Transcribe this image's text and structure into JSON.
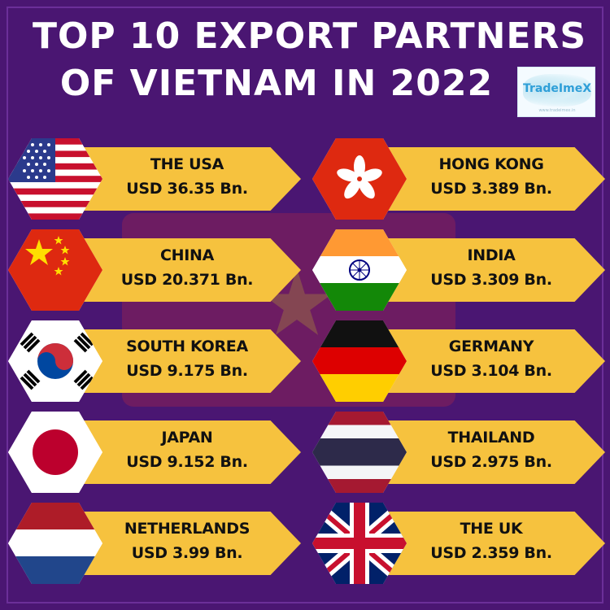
{
  "header": {
    "title_line1": "TOP 10 EXPORT PARTNERS",
    "title_line2": "OF VIETNAM IN 2022"
  },
  "logo": {
    "brand": "TradeImeX",
    "tagline": "www.tradeimex.in"
  },
  "partners": [
    {
      "country": "THE USA",
      "value": "USD 36.35 Bn.",
      "flag": "usa-flag-icon"
    },
    {
      "country": "CHINA",
      "value": "USD 20.371 Bn.",
      "flag": "china-flag-icon"
    },
    {
      "country": "SOUTH KOREA",
      "value": "USD 9.175 Bn.",
      "flag": "south-korea-flag-icon"
    },
    {
      "country": "JAPAN",
      "value": "USD 9.152 Bn.",
      "flag": "japan-flag-icon"
    },
    {
      "country": "NETHERLANDS",
      "value": "USD 3.99 Bn.",
      "flag": "netherlands-flag-icon"
    },
    {
      "country": "HONG KONG",
      "value": "USD 3.389 Bn.",
      "flag": "hong-kong-flag-icon"
    },
    {
      "country": "INDIA",
      "value": "USD 3.309 Bn.",
      "flag": "india-flag-icon"
    },
    {
      "country": "GERMANY",
      "value": "USD 3.104 Bn.",
      "flag": "germany-flag-icon"
    },
    {
      "country": "THAILAND",
      "value": "USD 2.975 Bn.",
      "flag": "thailand-flag-icon"
    },
    {
      "country": "THE UK",
      "value": "USD 2.359 Bn.",
      "flag": "uk-flag-icon"
    }
  ],
  "colors": {
    "background": "#4a1672",
    "arrow": "#f6c23e",
    "title": "#ffffff"
  }
}
